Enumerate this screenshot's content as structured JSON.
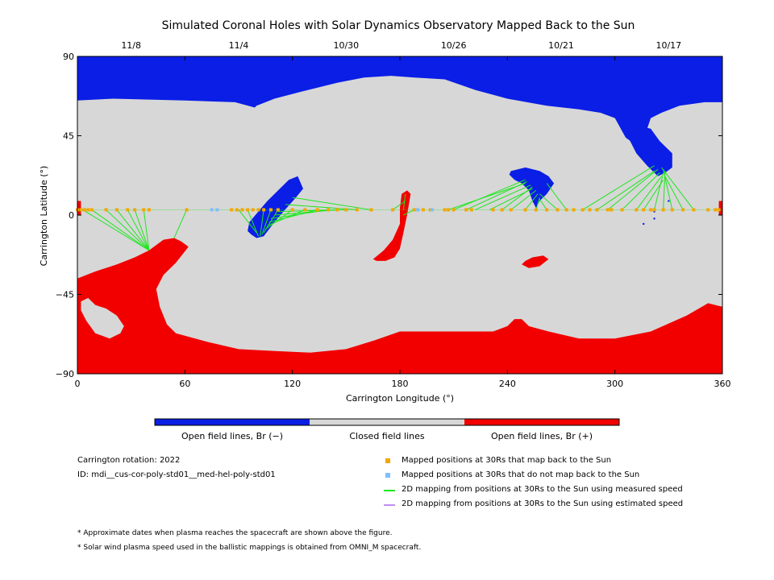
{
  "chart_data": {
    "type": "map",
    "title": "Simulated Coronal Holes with Solar Dynamics Observatory Mapped Back to the Sun",
    "xlabel": "Carrington Longitude (°)",
    "ylabel": "Carrington Latitude (°)",
    "xlim": [
      0,
      360
    ],
    "ylim": [
      -90,
      90
    ],
    "xticks": [
      "0",
      "60",
      "120",
      "180",
      "240",
      "300",
      "360"
    ],
    "yticks": [
      "90",
      "45",
      "0",
      "−45",
      "−90"
    ],
    "top_dates": [
      {
        "label": "11/8",
        "lon": 30
      },
      {
        "label": "11/4",
        "lon": 90
      },
      {
        "label": "10/30",
        "lon": 150
      },
      {
        "label": "10/26",
        "lon": 210
      },
      {
        "label": "10/21",
        "lon": 270
      },
      {
        "label": "10/17",
        "lon": 330
      }
    ],
    "colors": {
      "open_negative": "#0a1ee6",
      "closed": "#d7d7d7",
      "open_positive": "#f20000",
      "mapped": "#f2a800",
      "unmapped": "#7fbfff",
      "measured_line": "#1ee61e",
      "estimated_line": "#c28ef0"
    },
    "regions": {
      "north_polar_hole": [
        [
          0,
          90
        ],
        [
          360,
          90
        ],
        [
          360,
          64
        ],
        [
          350,
          64
        ],
        [
          336,
          62
        ],
        [
          326,
          58
        ],
        [
          320,
          55
        ],
        [
          318,
          49
        ],
        [
          322,
          42
        ],
        [
          328,
          36
        ],
        [
          332,
          28
        ],
        [
          328,
          30
        ],
        [
          322,
          34
        ],
        [
          314,
          38
        ],
        [
          306,
          44
        ],
        [
          300,
          55
        ],
        [
          292,
          58
        ],
        [
          280,
          60
        ],
        [
          262,
          62
        ],
        [
          240,
          66
        ],
        [
          222,
          71
        ],
        [
          205,
          77
        ],
        [
          188,
          78
        ],
        [
          175,
          79
        ],
        [
          160,
          78
        ],
        [
          145,
          75
        ],
        [
          125,
          70
        ],
        [
          110,
          66
        ],
        [
          100,
          62
        ],
        [
          99,
          61
        ],
        [
          88,
          64
        ],
        [
          60,
          65
        ],
        [
          20,
          66
        ],
        [
          0,
          65
        ]
      ],
      "south_polar_hole": [
        [
          0,
          -90
        ],
        [
          360,
          -90
        ],
        [
          360,
          -52
        ],
        [
          352,
          -50
        ],
        [
          340,
          -57
        ],
        [
          320,
          -66
        ],
        [
          300,
          -70
        ],
        [
          280,
          -70
        ],
        [
          263,
          -66
        ],
        [
          252,
          -63
        ],
        [
          248,
          -59
        ],
        [
          244,
          -59
        ],
        [
          240,
          -63
        ],
        [
          232,
          -66
        ],
        [
          214,
          -66
        ],
        [
          196,
          -66
        ],
        [
          180,
          -66
        ],
        [
          166,
          -71
        ],
        [
          150,
          -76
        ],
        [
          130,
          -78
        ],
        [
          108,
          -77
        ],
        [
          90,
          -76
        ],
        [
          73,
          -72
        ],
        [
          55,
          -67
        ],
        [
          50,
          -62
        ],
        [
          46,
          -52
        ],
        [
          44,
          -42
        ],
        [
          48,
          -34
        ],
        [
          55,
          -27
        ],
        [
          62,
          -18
        ],
        [
          58,
          -15
        ],
        [
          54,
          -13
        ],
        [
          48,
          -14
        ],
        [
          40,
          -20
        ],
        [
          32,
          -24
        ],
        [
          22,
          -28
        ],
        [
          10,
          -32
        ],
        [
          0,
          -36
        ]
      ],
      "south_loop_gap": [
        [
          6,
          -47
        ],
        [
          10,
          -51
        ],
        [
          16,
          -53
        ],
        [
          22,
          -57
        ],
        [
          26,
          -63
        ],
        [
          24,
          -67
        ],
        [
          18,
          -70
        ],
        [
          10,
          -67
        ],
        [
          5,
          -60
        ],
        [
          2,
          -54
        ],
        [
          2,
          -49
        ]
      ],
      "north_bridge_hole": [
        [
          97,
          -11
        ],
        [
          100,
          -13
        ],
        [
          104,
          -12
        ],
        [
          110,
          -4
        ],
        [
          115,
          2
        ],
        [
          122,
          10
        ],
        [
          126,
          15
        ],
        [
          123,
          22
        ],
        [
          118,
          20
        ],
        [
          112,
          14
        ],
        [
          106,
          8
        ],
        [
          101,
          2
        ],
        [
          96,
          -4
        ],
        [
          95,
          -9
        ]
      ],
      "mid_north_hole": [
        [
          242,
          25
        ],
        [
          250,
          27
        ],
        [
          258,
          25
        ],
        [
          263,
          22
        ],
        [
          266,
          18
        ],
        [
          262,
          12
        ],
        [
          258,
          8
        ],
        [
          256,
          4
        ],
        [
          254,
          8
        ],
        [
          252,
          14
        ],
        [
          248,
          18
        ],
        [
          244,
          20
        ],
        [
          241,
          23
        ]
      ],
      "high_lat_lobe": [
        [
          307,
          52
        ],
        [
          320,
          49
        ],
        [
          325,
          42
        ],
        [
          332,
          35
        ],
        [
          332,
          27
        ],
        [
          328,
          24
        ],
        [
          324,
          22
        ],
        [
          318,
          28
        ],
        [
          312,
          35
        ],
        [
          308,
          43
        ]
      ],
      "equator_positive_hole": [
        [
          184,
          14
        ],
        [
          186,
          12
        ],
        [
          184,
          0
        ],
        [
          182,
          -10
        ],
        [
          180,
          -19
        ],
        [
          177,
          -24
        ],
        [
          172,
          -26
        ],
        [
          167,
          -26
        ],
        [
          165,
          -25
        ],
        [
          171,
          -20
        ],
        [
          176,
          -14
        ],
        [
          180,
          -5
        ],
        [
          180,
          4
        ],
        [
          181,
          12
        ]
      ],
      "small_positive_patch": [
        [
          248,
          -28
        ],
        [
          252,
          -30
        ],
        [
          258,
          -29
        ],
        [
          263,
          -25
        ],
        [
          260,
          -23
        ],
        [
          254,
          -24
        ],
        [
          250,
          -26
        ]
      ],
      "left_edge_patch": [
        [
          0,
          8
        ],
        [
          2,
          8
        ],
        [
          2,
          0
        ],
        [
          0,
          0
        ]
      ],
      "right_edge_patch": [
        [
          358,
          8
        ],
        [
          360,
          8
        ],
        [
          360,
          0
        ],
        [
          358,
          0
        ]
      ]
    },
    "mapped_points_lon": [
      0,
      2,
      4,
      6,
      8,
      16,
      22,
      28,
      32,
      37,
      40,
      61,
      86,
      89,
      92,
      95,
      98,
      101,
      104,
      108,
      112,
      120,
      127,
      134,
      140,
      145,
      150,
      156,
      164,
      176,
      188,
      190,
      193,
      197,
      205,
      207,
      210,
      217,
      220,
      232,
      237,
      242,
      250,
      256,
      262,
      268,
      273,
      277,
      282,
      286,
      290,
      296,
      298,
      304,
      312,
      316,
      320,
      322,
      327,
      332,
      338,
      344,
      352,
      356,
      358
    ],
    "unmapped_points_lon": [
      75,
      78,
      190,
      198
    ],
    "mapping_lines": [
      [
        [
          3,
          3
        ],
        [
          40,
          -20
        ]
      ],
      [
        [
          8,
          3
        ],
        [
          40,
          -20
        ]
      ],
      [
        [
          16,
          3
        ],
        [
          40,
          -20
        ]
      ],
      [
        [
          22,
          3
        ],
        [
          40,
          -20
        ]
      ],
      [
        [
          28,
          3
        ],
        [
          40,
          -20
        ]
      ],
      [
        [
          32,
          3
        ],
        [
          40,
          -20
        ]
      ],
      [
        [
          37,
          3
        ],
        [
          40,
          -20
        ]
      ],
      [
        [
          61,
          3
        ],
        [
          54,
          -13
        ]
      ],
      [
        [
          90,
          3
        ],
        [
          100,
          -10
        ]
      ],
      [
        [
          95,
          3
        ],
        [
          101,
          -12
        ]
      ],
      [
        [
          104,
          3
        ],
        [
          102,
          -12
        ]
      ],
      [
        [
          108,
          3
        ],
        [
          103,
          -11
        ]
      ],
      [
        [
          112,
          3
        ],
        [
          104,
          -10
        ]
      ],
      [
        [
          120,
          3
        ],
        [
          105,
          -8
        ]
      ],
      [
        [
          127,
          3
        ],
        [
          106,
          -6
        ]
      ],
      [
        [
          134,
          3
        ],
        [
          107,
          -4
        ]
      ],
      [
        [
          140,
          3
        ],
        [
          108,
          -2
        ]
      ],
      [
        [
          145,
          3
        ],
        [
          110,
          0
        ]
      ],
      [
        [
          150,
          3
        ],
        [
          112,
          2
        ]
      ],
      [
        [
          156,
          3
        ],
        [
          116,
          6
        ]
      ],
      [
        [
          164,
          3
        ],
        [
          120,
          10
        ]
      ],
      [
        [
          176,
          3
        ],
        [
          183,
          8
        ]
      ],
      [
        [
          182,
          3
        ],
        [
          183,
          12
        ]
      ],
      [
        [
          188,
          3
        ],
        [
          182,
          0
        ]
      ],
      [
        [
          207,
          3
        ],
        [
          250,
          18
        ]
      ],
      [
        [
          210,
          3
        ],
        [
          250,
          20
        ]
      ],
      [
        [
          217,
          3
        ],
        [
          251,
          19
        ]
      ],
      [
        [
          222,
          3
        ],
        [
          253,
          17
        ]
      ],
      [
        [
          230,
          3
        ],
        [
          254,
          15
        ]
      ],
      [
        [
          237,
          3
        ],
        [
          254,
          16
        ]
      ],
      [
        [
          242,
          3
        ],
        [
          256,
          14
        ]
      ],
      [
        [
          250,
          3
        ],
        [
          257,
          12
        ]
      ],
      [
        [
          256,
          3
        ],
        [
          258,
          10
        ]
      ],
      [
        [
          262,
          3
        ],
        [
          258,
          9
        ]
      ],
      [
        [
          268,
          3
        ],
        [
          258,
          12
        ]
      ],
      [
        [
          273,
          3
        ],
        [
          262,
          18
        ]
      ],
      [
        [
          282,
          3
        ],
        [
          322,
          28
        ]
      ],
      [
        [
          290,
          3
        ],
        [
          322,
          25
        ]
      ],
      [
        [
          296,
          3
        ],
        [
          324,
          26
        ]
      ],
      [
        [
          304,
          3
        ],
        [
          325,
          24
        ]
      ],
      [
        [
          312,
          3
        ],
        [
          326,
          22
        ]
      ],
      [
        [
          316,
          3
        ],
        [
          327,
          20
        ]
      ],
      [
        [
          322,
          3
        ],
        [
          327,
          24
        ]
      ],
      [
        [
          327,
          3
        ],
        [
          328,
          25
        ]
      ],
      [
        [
          332,
          3
        ],
        [
          327,
          26
        ]
      ],
      [
        [
          338,
          3
        ],
        [
          328,
          22
        ]
      ],
      [
        [
          344,
          3
        ],
        [
          326,
          27
        ]
      ]
    ]
  },
  "colorbar": {
    "labels": [
      "Open field lines, Br (−)",
      "Closed field lines",
      "Open field lines, Br (+)"
    ]
  },
  "info": {
    "rotation": "Carrington rotation: 2022",
    "id": "ID: mdi__cus-cor-poly-std01__med-hel-poly-std01"
  },
  "legend": [
    {
      "kind": "square",
      "color": "#f2a800",
      "label": "Mapped positions at 30Rs that map back to the Sun"
    },
    {
      "kind": "square",
      "color": "#7fbfff",
      "label": "Mapped positions at 30Rs that do not map back to the Sun"
    },
    {
      "kind": "line",
      "color": "#1ee61e",
      "label": "2D mapping from positions at 30Rs to the Sun using measured speed"
    },
    {
      "kind": "line",
      "color": "#c28ef0",
      "label": "2D mapping from positions at 30Rs to the Sun using estimated speed"
    }
  ],
  "footnotes": [
    "* Approximate dates when plasma reaches the spacecraft are shown above the figure.",
    "* Solar wind plasma speed used in the ballistic mappings is obtained from OMNI_M spacecraft."
  ]
}
